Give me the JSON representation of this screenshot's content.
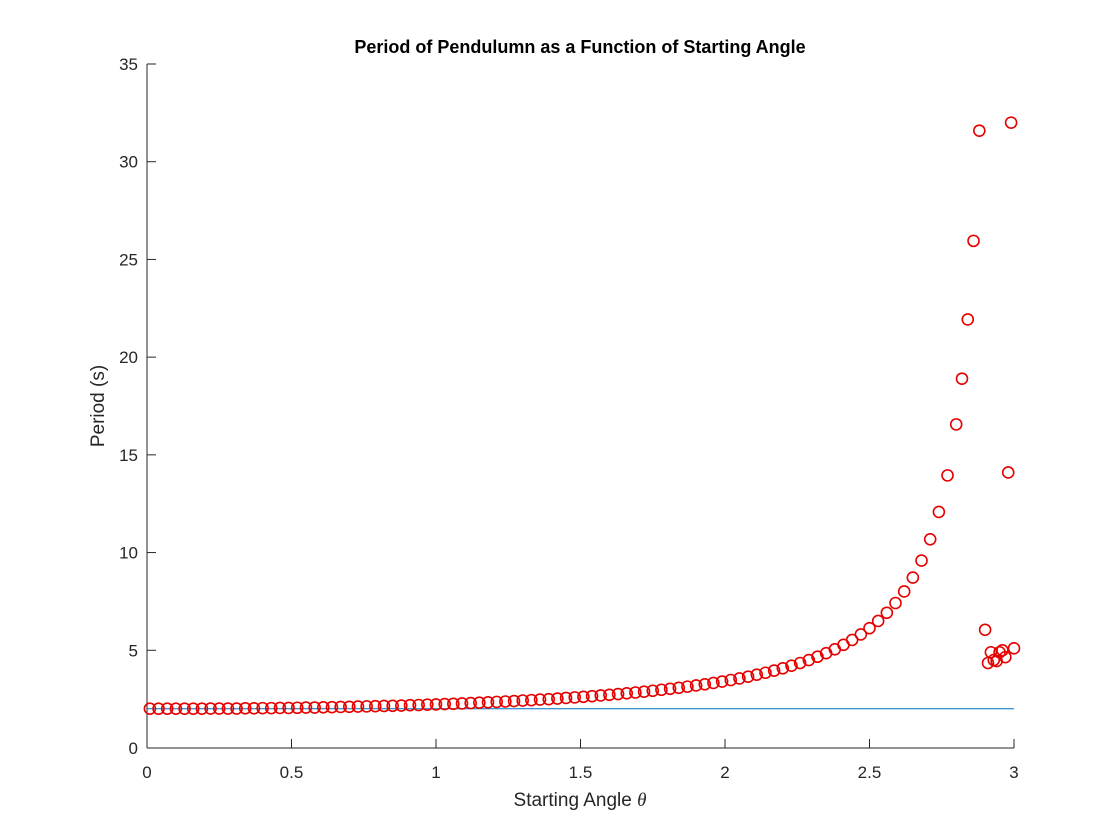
{
  "chart_data": {
    "type": "scatter",
    "title": "Period of Pendulumn as a Function of Starting Angle",
    "xlabel": "Starting Angle",
    "xlabel_symbol": "θ",
    "ylabel": "Period (s)",
    "xlim": [
      0,
      3
    ],
    "ylim": [
      0,
      35
    ],
    "xticks": [
      0,
      0.5,
      1,
      1.5,
      2,
      2.5,
      3
    ],
    "xtick_labels": [
      "0",
      "0.5",
      "1",
      "1.5",
      "2",
      "2.5",
      "3"
    ],
    "yticks": [
      0,
      5,
      10,
      15,
      20,
      25,
      30,
      35
    ],
    "ytick_labels": [
      "0",
      "5",
      "10",
      "15",
      "20",
      "25",
      "30",
      "35"
    ],
    "grid": false,
    "legend": "none",
    "colors": {
      "markers": "#e60000",
      "reference_line": "#0072bd",
      "axes": "#262626"
    },
    "reference_line": {
      "x": [
        0,
        3
      ],
      "y": [
        2.006,
        2.006
      ]
    },
    "series": [
      {
        "marker": "circle",
        "x": [
          0.01,
          0.04,
          0.07,
          0.1,
          0.13,
          0.16,
          0.19,
          0.22,
          0.25,
          0.28,
          0.31,
          0.34,
          0.37,
          0.4,
          0.43,
          0.46,
          0.49,
          0.52,
          0.55,
          0.58,
          0.61,
          0.64,
          0.67,
          0.7,
          0.73,
          0.76,
          0.79,
          0.82,
          0.85,
          0.88,
          0.91,
          0.94,
          0.97,
          1.0,
          1.03,
          1.06,
          1.09,
          1.12,
          1.15,
          1.18,
          1.21,
          1.24,
          1.27,
          1.3,
          1.33,
          1.36,
          1.39,
          1.42,
          1.45,
          1.48,
          1.51,
          1.54,
          1.57,
          1.6,
          1.63,
          1.66,
          1.69,
          1.72,
          1.75,
          1.78,
          1.81,
          1.84,
          1.87,
          1.9,
          1.93,
          1.96,
          1.99,
          2.02,
          2.05,
          2.08,
          2.11,
          2.14,
          2.17,
          2.2,
          2.23,
          2.26,
          2.29,
          2.32,
          2.35,
          2.38,
          2.41,
          2.44,
          2.47,
          2.5,
          2.53,
          2.56,
          2.59,
          2.62,
          2.65,
          2.68,
          2.71,
          2.74,
          2.77,
          2.8,
          2.82,
          2.84,
          2.86,
          2.88,
          2.9,
          2.91,
          2.92,
          2.93,
          2.94,
          2.95,
          2.96,
          2.97,
          2.98,
          2.99,
          3.0
        ],
        "y": [
          2.01,
          2.01,
          2.01,
          2.01,
          2.01,
          2.01,
          2.01,
          2.02,
          2.02,
          2.02,
          2.02,
          2.03,
          2.03,
          2.04,
          2.04,
          2.05,
          2.05,
          2.06,
          2.07,
          2.07,
          2.08,
          2.09,
          2.1,
          2.11,
          2.12,
          2.13,
          2.14,
          2.15,
          2.16,
          2.17,
          2.19,
          2.2,
          2.22,
          2.23,
          2.25,
          2.26,
          2.28,
          2.3,
          2.32,
          2.34,
          2.36,
          2.38,
          2.4,
          2.43,
          2.45,
          2.48,
          2.5,
          2.53,
          2.56,
          2.59,
          2.62,
          2.65,
          2.69,
          2.72,
          2.76,
          2.8,
          2.84,
          2.88,
          2.93,
          2.98,
          3.03,
          3.08,
          3.14,
          3.2,
          3.26,
          3.33,
          3.4,
          3.48,
          3.56,
          3.65,
          3.75,
          3.85,
          3.96,
          4.08,
          4.21,
          4.35,
          4.5,
          4.67,
          4.85,
          5.05,
          5.28,
          5.53,
          5.81,
          6.13,
          6.5,
          6.92,
          7.42,
          8.01,
          8.72,
          9.59,
          10.68,
          12.08,
          13.95,
          16.56,
          18.9,
          21.93,
          25.95,
          31.59,
          6.05,
          4.35,
          4.9,
          4.5,
          4.45,
          4.9,
          5.0,
          4.65,
          14.1,
          32.0,
          5.1
        ],
        "note_ignore": true
      }
    ]
  }
}
